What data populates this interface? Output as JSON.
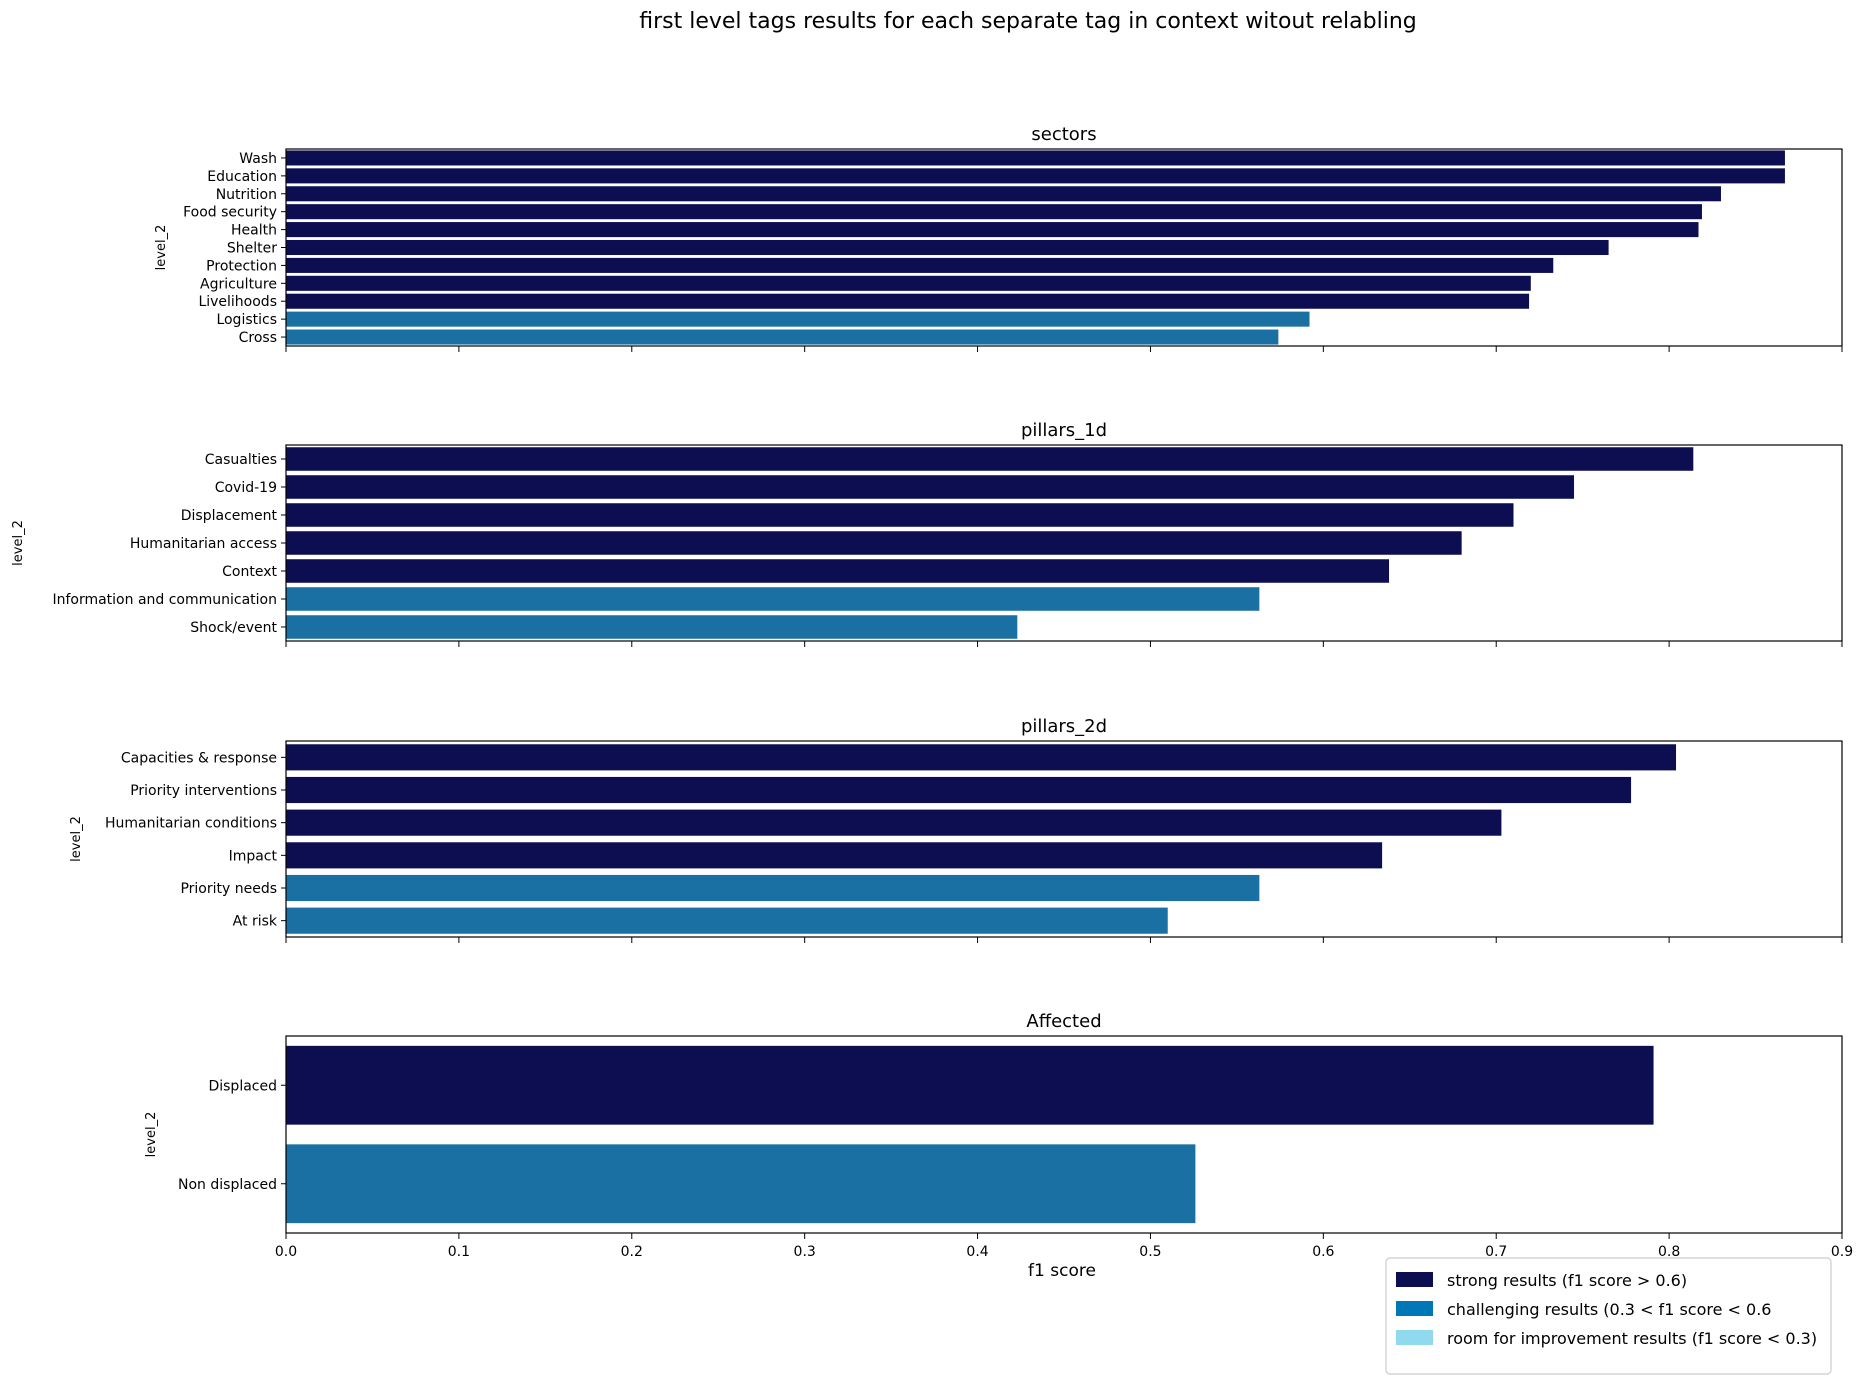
{
  "title": "first level tags results for each separate tag in context witout relabling",
  "xlabel": "f1 score",
  "colors": {
    "strong": "#0d0e52",
    "challenging": "#1a70a3",
    "room": "#8fdaee",
    "legend_challenging": "#0077b6"
  },
  "legend": [
    {
      "label": "strong results (f1 score > 0.6)",
      "color_key": "strong"
    },
    {
      "label": "challenging results (0.3 < f1 score < 0.6",
      "color_key": "legend_challenging"
    },
    {
      "label": "room for improvement results (f1 score < 0.3)",
      "color_key": "room"
    }
  ],
  "chart_data": {
    "type": "bar",
    "orientation": "horizontal",
    "legend_position": "bottom-right",
    "grid": false,
    "xlim": [
      0,
      0.9
    ],
    "xticks": [
      "0.0",
      "0.1",
      "0.2",
      "0.3",
      "0.4",
      "0.5",
      "0.6",
      "0.7",
      "0.8",
      "0.9"
    ],
    "panels": [
      {
        "title": "sectors",
        "ylabel": "level_2",
        "categories": [
          "Wash",
          "Education",
          "Nutrition",
          "Food security",
          "Health",
          "Shelter",
          "Protection",
          "Agriculture",
          "Livelihoods",
          "Logistics",
          "Cross"
        ],
        "values": [
          0.867,
          0.867,
          0.83,
          0.819,
          0.817,
          0.765,
          0.733,
          0.72,
          0.719,
          0.592,
          0.574
        ],
        "classes": [
          "strong",
          "strong",
          "strong",
          "strong",
          "strong",
          "strong",
          "strong",
          "strong",
          "strong",
          "challenging",
          "challenging"
        ]
      },
      {
        "title": "pillars_1d",
        "ylabel": "level_2",
        "categories": [
          "Casualties",
          "Covid-19",
          "Displacement",
          "Humanitarian access",
          "Context",
          "Information and communication",
          "Shock/event"
        ],
        "values": [
          0.814,
          0.745,
          0.71,
          0.68,
          0.638,
          0.563,
          0.423
        ],
        "classes": [
          "strong",
          "strong",
          "strong",
          "strong",
          "strong",
          "challenging",
          "challenging"
        ]
      },
      {
        "title": "pillars_2d",
        "ylabel": "level_2",
        "categories": [
          "Capacities & response",
          "Priority interventions",
          "Humanitarian conditions",
          "Impact",
          "Priority needs",
          "At risk"
        ],
        "values": [
          0.804,
          0.778,
          0.703,
          0.634,
          0.563,
          0.51
        ],
        "classes": [
          "strong",
          "strong",
          "strong",
          "strong",
          "challenging",
          "challenging"
        ]
      },
      {
        "title": "Affected",
        "ylabel": "level_2",
        "categories": [
          "Displaced",
          "Non displaced"
        ],
        "values": [
          0.791,
          0.526
        ],
        "classes": [
          "strong",
          "challenging"
        ]
      }
    ]
  }
}
